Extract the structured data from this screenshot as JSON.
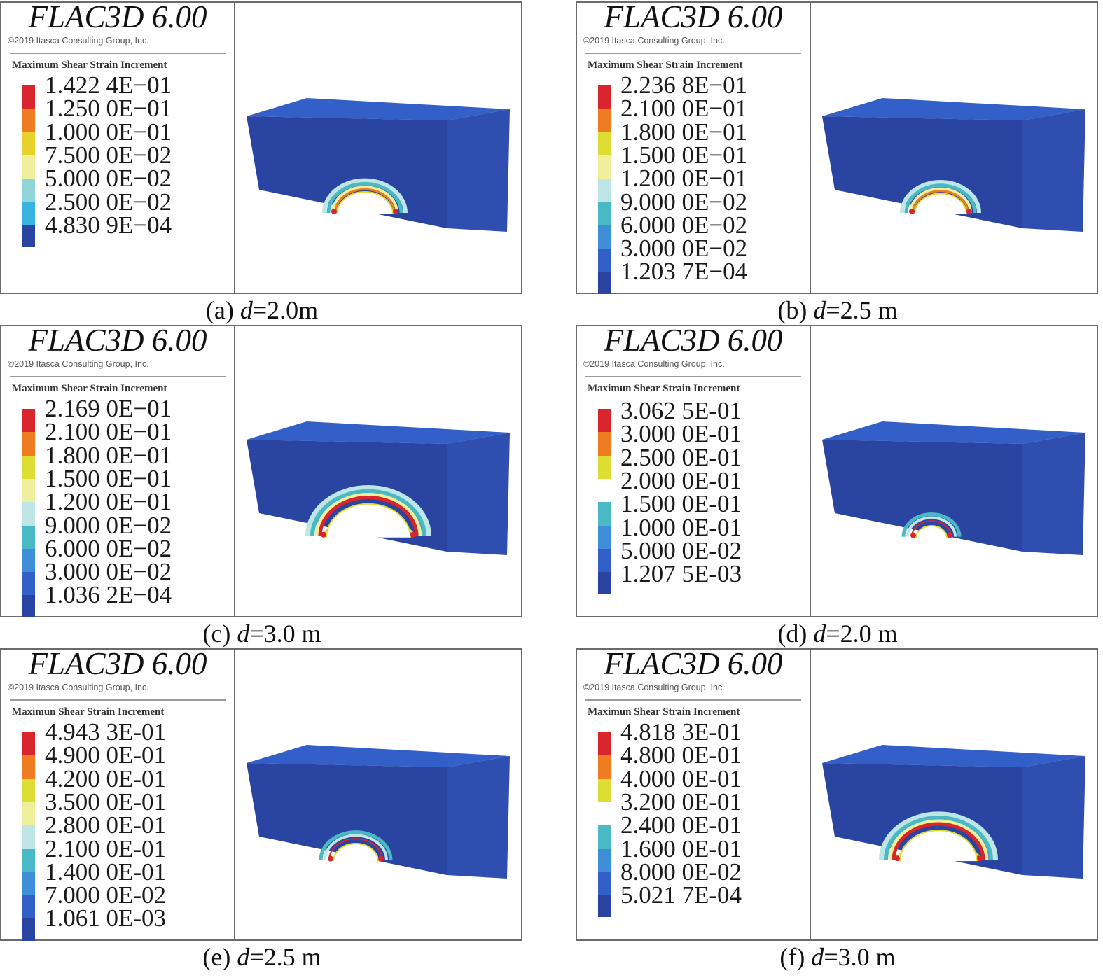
{
  "software_title": "FLAC3D 6.00",
  "copyright": "©2019 Itasca Consulting Group, Inc.",
  "colors": {
    "red": "#d9262c",
    "orange": "#ee7d22",
    "yellow": "#dddd33",
    "pale_yellow": "#efef9c",
    "pale_cyan": "#bfe6e6",
    "cyan": "#4ab9c6",
    "light_blue": "#3e8fd8",
    "mid_blue": "#3260c8",
    "dark_blue": "#2a44a2"
  },
  "panels": [
    {
      "id": "a",
      "caption_prefix": "(a) ",
      "caption_var": "d",
      "caption_value": "=2.0m",
      "legend_title": "Maximum Shear Strain Increment",
      "legend": [
        {
          "label": "1.422 4E−01",
          "color": "#d9262c"
        },
        {
          "label": "1.250 0E−01",
          "color": "#ee7d22"
        },
        {
          "label": "1.000 0E−01",
          "color": "#e9d12c"
        },
        {
          "label": "7.500 0E−02",
          "color": "#efef9c"
        },
        {
          "label": "5.000 0E−02",
          "color": "#8fd4d8"
        },
        {
          "label": "2.500 0E−02",
          "color": "#38b4e2"
        },
        {
          "label": "4.830 9E−04",
          "color": "#2a44a2"
        }
      ]
    },
    {
      "id": "b",
      "caption_prefix": "(b) ",
      "caption_var": "d",
      "caption_value": "=2.5 m",
      "legend_title": "Maximum Shear Strain Increment",
      "legend": [
        {
          "label": "2.236 8E−01",
          "color": "#d9262c"
        },
        {
          "label": "2.100 0E−01",
          "color": "#ee7d22"
        },
        {
          "label": "1.800 0E−01",
          "color": "#dddd33"
        },
        {
          "label": "1.500 0E−01",
          "color": "#efef9c"
        },
        {
          "label": "1.200 0E−01",
          "color": "#bfe6e6"
        },
        {
          "label": "9.000 0E−02",
          "color": "#4ab9c6"
        },
        {
          "label": "6.000 0E−02",
          "color": "#3e8fd8"
        },
        {
          "label": "3.000 0E−02",
          "color": "#3260c8"
        },
        {
          "label": "1.203 7E−04",
          "color": "#2a44a2"
        }
      ]
    },
    {
      "id": "c",
      "caption_prefix": "(c) ",
      "caption_var": "d",
      "caption_value": "=3.0 m",
      "legend_title": "Maximum Shear Strain Increment",
      "legend": [
        {
          "label": "2.169 0E−01",
          "color": "#d9262c"
        },
        {
          "label": "2.100 0E−01",
          "color": "#ee7d22"
        },
        {
          "label": "1.800 0E−01",
          "color": "#dddd33"
        },
        {
          "label": "1.500 0E−01",
          "color": "#efef9c"
        },
        {
          "label": "1.200 0E−01",
          "color": "#bfe6e6"
        },
        {
          "label": "9.000 0E−02",
          "color": "#4ab9c6"
        },
        {
          "label": "6.000 0E−02",
          "color": "#3e8fd8"
        },
        {
          "label": "3.000 0E−02",
          "color": "#3260c8"
        },
        {
          "label": "1.036 2E−04",
          "color": "#2a44a2"
        }
      ]
    },
    {
      "id": "d",
      "caption_prefix": "(d) ",
      "caption_var": "d",
      "caption_value": "=2.0 m",
      "legend_title": "Maximun Shear Strain Increment",
      "legend": [
        {
          "label": "3.062 5E-01",
          "color": "#d9262c"
        },
        {
          "label": "3.000 0E-01",
          "color": "#ee7d22"
        },
        {
          "label": "2.500 0E-01",
          "color": "#dddd33"
        },
        {
          "label": "2.000 0E-01",
          "color": "#ffffff"
        },
        {
          "label": "1.500 0E-01",
          "color": "#4ab9c6"
        },
        {
          "label": "1.000 0E-01",
          "color": "#3e8fd8"
        },
        {
          "label": "5.000 0E-02",
          "color": "#3260c8"
        },
        {
          "label": "1.207 5E-03",
          "color": "#2a44a2"
        }
      ]
    },
    {
      "id": "e",
      "caption_prefix": "(e) ",
      "caption_var": "d",
      "caption_value": "=2.5 m",
      "legend_title": "Maximun Shear Strain Increment",
      "legend": [
        {
          "label": "4.943 3E-01",
          "color": "#d9262c"
        },
        {
          "label": "4.900 0E-01",
          "color": "#ee7d22"
        },
        {
          "label": "4.200 0E-01",
          "color": "#dddd33"
        },
        {
          "label": "3.500 0E-01",
          "color": "#efef9c"
        },
        {
          "label": "2.800 0E-01",
          "color": "#bfe6e6"
        },
        {
          "label": "2.100 0E-01",
          "color": "#4ab9c6"
        },
        {
          "label": "1.400 0E-01",
          "color": "#3e8fd8"
        },
        {
          "label": "7.000 0E-02",
          "color": "#3260c8"
        },
        {
          "label": "1.061 0E-03",
          "color": "#2a44a2"
        }
      ]
    },
    {
      "id": "f",
      "caption_prefix": "(f) ",
      "caption_var": "d",
      "caption_value": "=3.0 m",
      "legend_title": "Maximun Shear Strain Increment",
      "legend": [
        {
          "label": "4.818 3E-01",
          "color": "#d9262c"
        },
        {
          "label": "4.800 0E-01",
          "color": "#ee7d22"
        },
        {
          "label": "4.000 0E-01",
          "color": "#dddd33"
        },
        {
          "label": "3.200 0E-01",
          "color": "#ffffff"
        },
        {
          "label": "2.400 0E-01",
          "color": "#4ab9c6"
        },
        {
          "label": "1.600 0E-01",
          "color": "#3e8fd8"
        },
        {
          "label": "8.000 0E-02",
          "color": "#3260c8"
        },
        {
          "label": "5.021 7E-04",
          "color": "#2a44a2"
        }
      ]
    }
  ]
}
